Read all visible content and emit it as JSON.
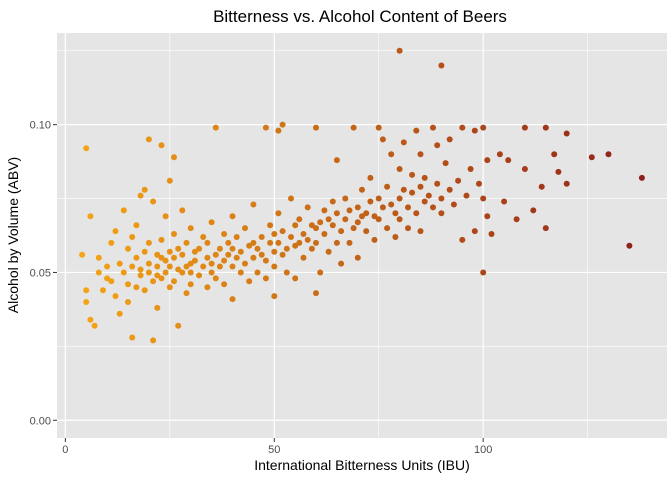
{
  "chart_data": {
    "type": "scatter",
    "title": "Bitterness vs. Alcohol Content of Beers",
    "xlabel": "International Bitterness Units (IBU)",
    "ylabel": "Alcohol by Volume (ABV)",
    "xlim": [
      -2,
      144
    ],
    "ylim": [
      -0.006,
      0.131
    ],
    "x_ticks": [
      0,
      50,
      100
    ],
    "x_tick_labels": [
      "0",
      "50",
      "100"
    ],
    "y_ticks": [
      0.0,
      0.05,
      0.1
    ],
    "y_tick_labels": [
      "0.00",
      "0.05",
      "0.10"
    ],
    "grid": true,
    "color_low": "#f5a516",
    "color_high": "#8f1f1a",
    "panel_background": "#e5e5e5",
    "grid_color": "#ffffff",
    "points": [
      [
        5,
        0.092
      ],
      [
        4,
        0.056
      ],
      [
        5,
        0.044
      ],
      [
        5,
        0.04
      ],
      [
        6,
        0.034
      ],
      [
        7,
        0.032
      ],
      [
        6,
        0.069
      ],
      [
        8,
        0.05
      ],
      [
        8,
        0.055
      ],
      [
        9,
        0.044
      ],
      [
        10,
        0.048
      ],
      [
        10,
        0.052
      ],
      [
        11,
        0.06
      ],
      [
        11,
        0.047
      ],
      [
        12,
        0.042
      ],
      [
        12,
        0.064
      ],
      [
        13,
        0.036
      ],
      [
        13,
        0.053
      ],
      [
        14,
        0.071
      ],
      [
        14,
        0.05
      ],
      [
        15,
        0.046
      ],
      [
        15,
        0.058
      ],
      [
        15,
        0.04
      ],
      [
        16,
        0.062
      ],
      [
        16,
        0.052
      ],
      [
        16,
        0.028
      ],
      [
        17,
        0.045
      ],
      [
        17,
        0.066
      ],
      [
        17,
        0.055
      ],
      [
        18,
        0.049
      ],
      [
        18,
        0.051
      ],
      [
        18,
        0.076
      ],
      [
        19,
        0.078
      ],
      [
        19,
        0.044
      ],
      [
        19,
        0.057
      ],
      [
        20,
        0.095
      ],
      [
        20,
        0.05
      ],
      [
        20,
        0.06
      ],
      [
        20,
        0.053
      ],
      [
        21,
        0.047
      ],
      [
        21,
        0.074
      ],
      [
        21,
        0.027
      ],
      [
        22,
        0.052
      ],
      [
        22,
        0.049
      ],
      [
        22,
        0.056
      ],
      [
        22,
        0.038
      ],
      [
        23,
        0.093
      ],
      [
        23,
        0.048
      ],
      [
        23,
        0.061
      ],
      [
        23,
        0.055
      ],
      [
        24,
        0.054
      ],
      [
        24,
        0.05
      ],
      [
        24,
        0.069
      ],
      [
        25,
        0.052
      ],
      [
        25,
        0.057
      ],
      [
        25,
        0.045
      ],
      [
        25,
        0.081
      ],
      [
        26,
        0.089
      ],
      [
        26,
        0.047
      ],
      [
        26,
        0.055
      ],
      [
        26,
        0.063
      ],
      [
        27,
        0.051
      ],
      [
        27,
        0.058
      ],
      [
        27,
        0.032
      ],
      [
        28,
        0.05
      ],
      [
        28,
        0.056
      ],
      [
        28,
        0.071
      ],
      [
        29,
        0.052
      ],
      [
        29,
        0.043
      ],
      [
        29,
        0.06
      ],
      [
        30,
        0.053
      ],
      [
        30,
        0.065
      ],
      [
        30,
        0.05
      ],
      [
        30,
        0.046
      ],
      [
        31,
        0.054
      ],
      [
        31,
        0.057
      ],
      [
        32,
        0.049
      ],
      [
        32,
        0.058
      ],
      [
        33,
        0.062
      ],
      [
        33,
        0.052
      ],
      [
        34,
        0.055
      ],
      [
        34,
        0.06
      ],
      [
        34,
        0.045
      ],
      [
        35,
        0.053
      ],
      [
        35,
        0.067
      ],
      [
        35,
        0.05
      ],
      [
        36,
        0.099
      ],
      [
        36,
        0.056
      ],
      [
        36,
        0.048
      ],
      [
        37,
        0.058
      ],
      [
        37,
        0.052
      ],
      [
        38,
        0.063
      ],
      [
        38,
        0.054
      ],
      [
        38,
        0.046
      ],
      [
        39,
        0.056
      ],
      [
        39,
        0.06
      ],
      [
        40,
        0.069
      ],
      [
        40,
        0.052
      ],
      [
        40,
        0.058
      ],
      [
        40,
        0.041
      ],
      [
        41,
        0.055
      ],
      [
        41,
        0.062
      ],
      [
        42,
        0.057
      ],
      [
        42,
        0.05
      ],
      [
        43,
        0.053
      ],
      [
        43,
        0.065
      ],
      [
        44,
        0.059
      ],
      [
        44,
        0.047
      ],
      [
        45,
        0.06
      ],
      [
        45,
        0.055
      ],
      [
        45,
        0.073
      ],
      [
        46,
        0.058
      ],
      [
        46,
        0.05
      ],
      [
        47,
        0.056
      ],
      [
        47,
        0.062
      ],
      [
        48,
        0.099
      ],
      [
        48,
        0.054
      ],
      [
        48,
        0.048
      ],
      [
        49,
        0.06
      ],
      [
        49,
        0.066
      ],
      [
        50,
        0.057
      ],
      [
        50,
        0.063
      ],
      [
        50,
        0.052
      ],
      [
        50,
        0.042
      ],
      [
        51,
        0.098
      ],
      [
        51,
        0.06
      ],
      [
        51,
        0.07
      ],
      [
        52,
        0.1
      ],
      [
        52,
        0.056
      ],
      [
        52,
        0.064
      ],
      [
        53,
        0.058
      ],
      [
        53,
        0.05
      ],
      [
        54,
        0.062
      ],
      [
        54,
        0.075
      ],
      [
        55,
        0.059
      ],
      [
        55,
        0.066
      ],
      [
        55,
        0.048
      ],
      [
        56,
        0.06
      ],
      [
        56,
        0.068
      ],
      [
        57,
        0.055
      ],
      [
        57,
        0.063
      ],
      [
        58,
        0.061
      ],
      [
        58,
        0.072
      ],
      [
        59,
        0.058
      ],
      [
        59,
        0.066
      ],
      [
        60,
        0.099
      ],
      [
        60,
        0.065
      ],
      [
        60,
        0.06
      ],
      [
        60,
        0.043
      ],
      [
        61,
        0.067
      ],
      [
        61,
        0.05
      ],
      [
        62,
        0.063
      ],
      [
        62,
        0.071
      ],
      [
        63,
        0.057
      ],
      [
        63,
        0.068
      ],
      [
        64,
        0.066
      ],
      [
        64,
        0.074
      ],
      [
        65,
        0.06
      ],
      [
        65,
        0.07
      ],
      [
        65,
        0.088
      ],
      [
        66,
        0.064
      ],
      [
        66,
        0.053
      ],
      [
        67,
        0.068
      ],
      [
        67,
        0.075
      ],
      [
        68,
        0.071
      ],
      [
        68,
        0.06
      ],
      [
        69,
        0.065
      ],
      [
        69,
        0.099
      ],
      [
        70,
        0.072
      ],
      [
        70,
        0.067
      ],
      [
        70,
        0.055
      ],
      [
        71,
        0.069
      ],
      [
        71,
        0.078
      ],
      [
        72,
        0.07
      ],
      [
        72,
        0.064
      ],
      [
        73,
        0.074
      ],
      [
        73,
        0.082
      ],
      [
        74,
        0.069
      ],
      [
        74,
        0.061
      ],
      [
        75,
        0.075
      ],
      [
        75,
        0.099
      ],
      [
        75,
        0.068
      ],
      [
        76,
        0.072
      ],
      [
        76,
        0.095
      ],
      [
        77,
        0.079
      ],
      [
        77,
        0.065
      ],
      [
        78,
        0.073
      ],
      [
        78,
        0.09
      ],
      [
        79,
        0.07
      ],
      [
        79,
        0.062
      ],
      [
        80,
        0.125
      ],
      [
        80,
        0.085
      ],
      [
        80,
        0.075
      ],
      [
        80,
        0.068
      ],
      [
        81,
        0.078
      ],
      [
        81,
        0.094
      ],
      [
        82,
        0.072
      ],
      [
        82,
        0.065
      ],
      [
        83,
        0.083
      ],
      [
        83,
        0.077
      ],
      [
        84,
        0.098
      ],
      [
        84,
        0.07
      ],
      [
        85,
        0.079
      ],
      [
        85,
        0.09
      ],
      [
        85,
        0.064
      ],
      [
        86,
        0.074
      ],
      [
        86,
        0.082
      ],
      [
        87,
        0.076
      ],
      [
        88,
        0.099
      ],
      [
        88,
        0.072
      ],
      [
        89,
        0.08
      ],
      [
        89,
        0.093
      ],
      [
        90,
        0.12
      ],
      [
        90,
        0.075
      ],
      [
        90,
        0.07
      ],
      [
        91,
        0.087
      ],
      [
        92,
        0.078
      ],
      [
        92,
        0.095
      ],
      [
        93,
        0.073
      ],
      [
        94,
        0.081
      ],
      [
        95,
        0.099
      ],
      [
        95,
        0.061
      ],
      [
        96,
        0.076
      ],
      [
        97,
        0.085
      ],
      [
        98,
        0.098
      ],
      [
        98,
        0.064
      ],
      [
        99,
        0.08
      ],
      [
        100,
        0.099
      ],
      [
        100,
        0.05
      ],
      [
        100,
        0.075
      ],
      [
        101,
        0.069
      ],
      [
        101,
        0.088
      ],
      [
        102,
        0.063
      ],
      [
        104,
        0.09
      ],
      [
        105,
        0.074
      ],
      [
        106,
        0.088
      ],
      [
        108,
        0.068
      ],
      [
        110,
        0.099
      ],
      [
        110,
        0.085
      ],
      [
        112,
        0.071
      ],
      [
        114,
        0.079
      ],
      [
        115,
        0.099
      ],
      [
        115,
        0.065
      ],
      [
        117,
        0.09
      ],
      [
        118,
        0.084
      ],
      [
        120,
        0.097
      ],
      [
        120,
        0.08
      ],
      [
        126,
        0.089
      ],
      [
        130,
        0.09
      ],
      [
        135,
        0.059
      ],
      [
        138,
        0.082
      ]
    ]
  }
}
